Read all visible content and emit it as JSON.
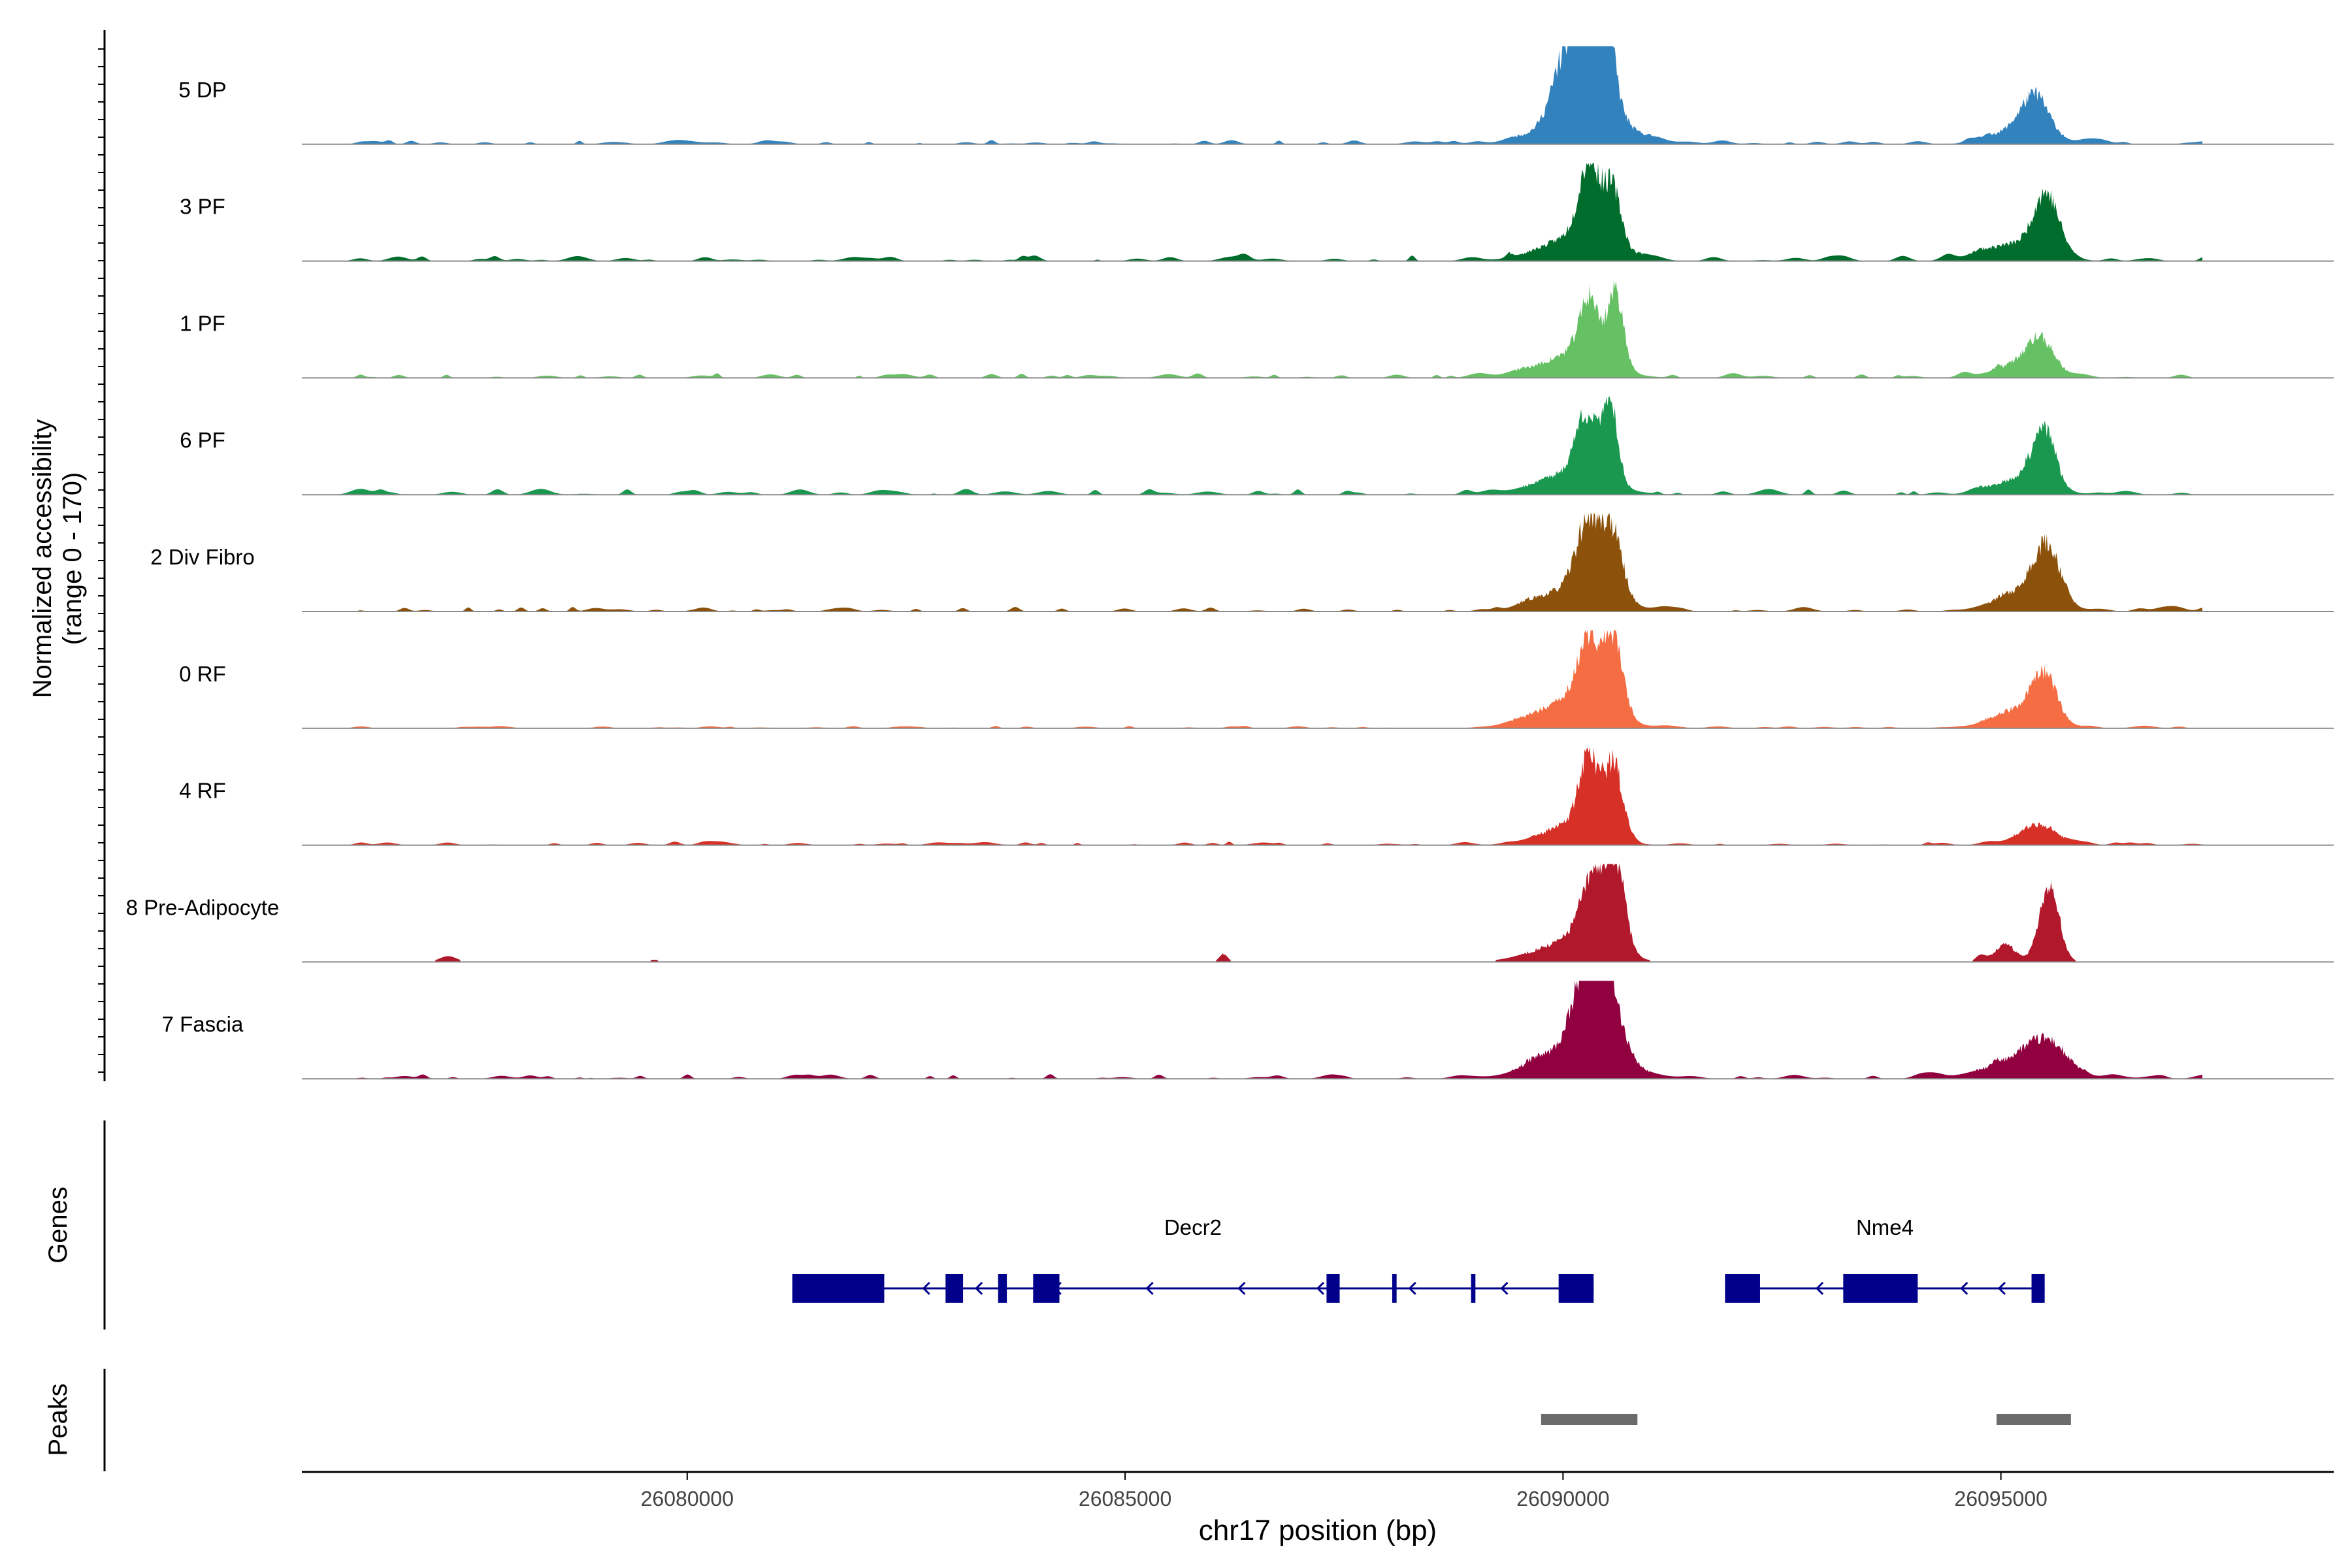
{
  "chart_data": {
    "type": "area",
    "title": "",
    "xlabel": "chr17 position (bp)",
    "ylabel_line1": "Normalized accessibility",
    "ylabel_line2": "(range 0 - 170)",
    "y_range": [
      0,
      170
    ],
    "x_range": [
      26075600,
      26098800
    ],
    "x_ticks": [
      26080000,
      26085000,
      26090000,
      26095000
    ],
    "x_tick_labels": [
      "26080000",
      "26085000",
      "26090000",
      "26095000"
    ],
    "genes_label": "Genes",
    "peaks_label": "Peaks",
    "tracks": [
      {
        "name": "5 DP",
        "color": "#3182bd",
        "peaks": [
          [
            26090050,
            0.62,
            160
          ],
          [
            26090300,
            0.8,
            150
          ],
          [
            26090470,
            0.95,
            110
          ],
          [
            26090250,
            0.35,
            420
          ],
          [
            26095400,
            0.38,
            160
          ],
          [
            26095200,
            0.15,
            300
          ]
        ],
        "seed": 11,
        "noise": 0.035
      },
      {
        "name": "3 PF",
        "color": "#006d2c",
        "peaks": [
          [
            26090300,
            0.82,
            110
          ],
          [
            26090560,
            0.62,
            100
          ],
          [
            26090150,
            0.25,
            400
          ],
          [
            26095530,
            0.6,
            140
          ],
          [
            26095150,
            0.18,
            350
          ]
        ],
        "seed": 23,
        "noise": 0.05
      },
      {
        "name": "1 PF",
        "color": "#66c164",
        "peaks": [
          [
            26090300,
            0.65,
            110
          ],
          [
            26090600,
            0.78,
            90
          ],
          [
            26090100,
            0.22,
            400
          ],
          [
            26095450,
            0.35,
            150
          ],
          [
            26095200,
            0.12,
            300
          ]
        ],
        "seed": 37,
        "noise": 0.04
      },
      {
        "name": "6 PF",
        "color": "#1a9850",
        "peaks": [
          [
            26090260,
            0.62,
            110
          ],
          [
            26090530,
            0.88,
            90
          ],
          [
            26090100,
            0.22,
            400
          ],
          [
            26095500,
            0.58,
            120
          ],
          [
            26095250,
            0.18,
            300
          ]
        ],
        "seed": 41,
        "noise": 0.05
      },
      {
        "name": "2 Div Fibro",
        "color": "#8c510a",
        "peaks": [
          [
            26090280,
            0.7,
            130
          ],
          [
            26090560,
            0.68,
            120
          ],
          [
            26090150,
            0.25,
            400
          ],
          [
            26095520,
            0.58,
            150
          ],
          [
            26095250,
            0.2,
            320
          ]
        ],
        "seed": 53,
        "noise": 0.04
      },
      {
        "name": "0 RF",
        "color": "#f46d43",
        "peaks": [
          [
            26090300,
            0.7,
            130
          ],
          [
            26090580,
            0.78,
            110
          ],
          [
            26090100,
            0.28,
            400
          ],
          [
            26095500,
            0.48,
            140
          ],
          [
            26095200,
            0.18,
            300
          ]
        ],
        "seed": 61,
        "noise": 0.02
      },
      {
        "name": "4 RF",
        "color": "#d73027",
        "peaks": [
          [
            26090300,
            0.8,
            110
          ],
          [
            26090580,
            0.78,
            100
          ],
          [
            26090100,
            0.2,
            350
          ],
          [
            26095400,
            0.22,
            200
          ]
        ],
        "seed": 71,
        "noise": 0.03
      },
      {
        "name": "8 Pre-Adipocyte",
        "color": "#b2182b",
        "peaks": [
          [
            26090350,
            0.7,
            150
          ],
          [
            26090600,
            0.88,
            110
          ],
          [
            26090100,
            0.22,
            400
          ],
          [
            26095550,
            0.82,
            110
          ],
          [
            26095050,
            0.18,
            120
          ]
        ],
        "seed": 83,
        "noise": 0.07,
        "sparse": true
      },
      {
        "name": "7 Fascia",
        "color": "#91003f",
        "peaks": [
          [
            26090300,
            0.92,
            150
          ],
          [
            26090500,
            0.8,
            140
          ],
          [
            26090200,
            0.35,
            450
          ],
          [
            26095500,
            0.3,
            250
          ],
          [
            26095150,
            0.15,
            400
          ]
        ],
        "seed": 97,
        "noise": 0.04
      }
    ],
    "genes": [
      {
        "name": "Decr2",
        "strand": "-",
        "start": 26081200,
        "end": 26090350,
        "exons": [
          [
            26081200,
            26082250
          ],
          [
            26082950,
            26083150
          ],
          [
            26083550,
            26083650
          ],
          [
            26083950,
            26084250
          ],
          [
            26087300,
            26087450
          ],
          [
            26088050,
            26088100
          ],
          [
            26088950,
            26089000
          ],
          [
            26089950,
            26090350
          ]
        ],
        "arrows": [
          26082100,
          26082700,
          26083300,
          26084200,
          26085250,
          26086300,
          26087200,
          26088250,
          26089300
        ]
      },
      {
        "name": "Nme4",
        "strand": "-",
        "start": 26091850,
        "end": 26095500,
        "exons": [
          [
            26091850,
            26092250
          ],
          [
            26093200,
            26094050
          ],
          [
            26095350,
            26095500
          ]
        ],
        "arrows": [
          26092900,
          26094550,
          26094980
        ]
      }
    ],
    "peaks": [
      [
        26089750,
        26090850
      ],
      [
        26094950,
        26095800
      ]
    ]
  }
}
